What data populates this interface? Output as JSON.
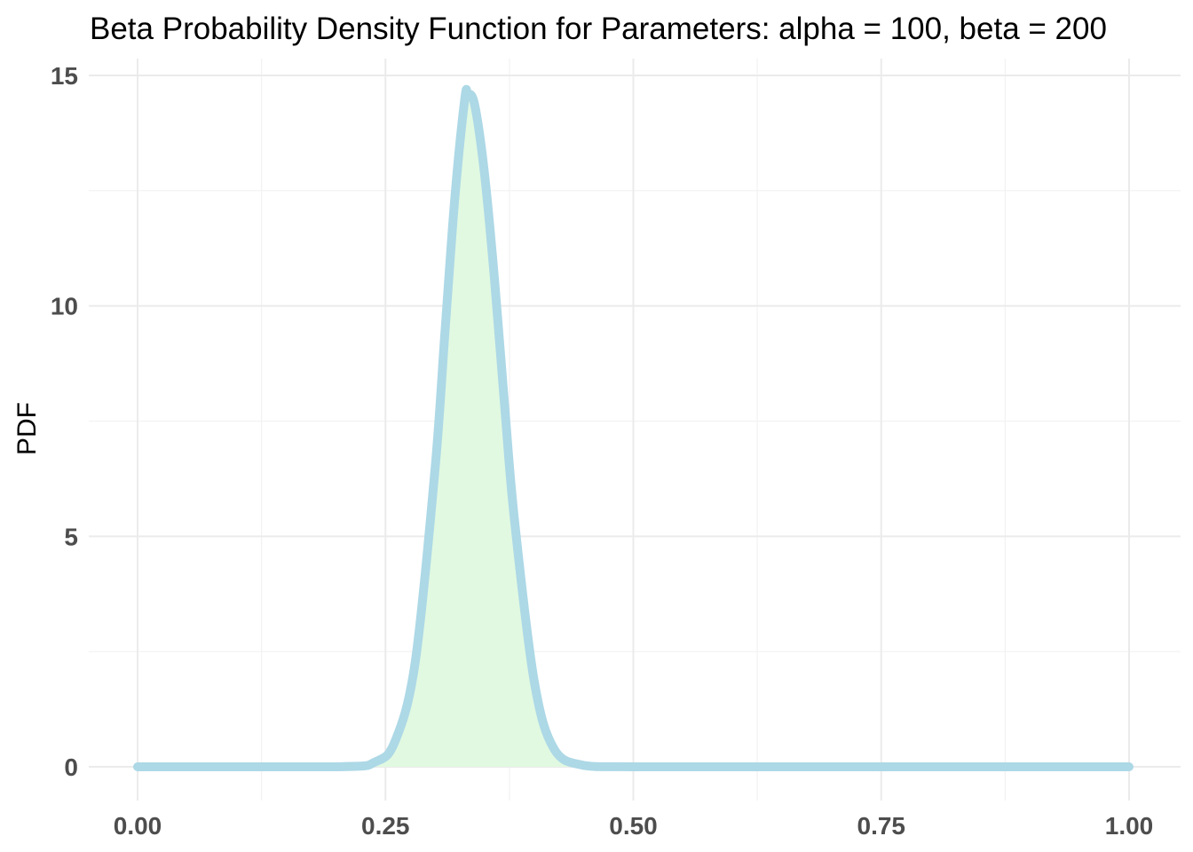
{
  "chart_data": {
    "type": "area",
    "title": "Beta Probability Density Function for Parameters: alpha = 100, beta = 200",
    "xlabel": "",
    "ylabel": "PDF",
    "distribution": {
      "family": "beta",
      "alpha": 100,
      "beta": 200
    },
    "xlim": [
      0,
      1
    ],
    "ylim": [
      0,
      15
    ],
    "x_ticks": [
      0.0,
      0.25,
      0.5,
      0.75,
      1.0
    ],
    "x_tick_labels": [
      "0.00",
      "0.25",
      "0.50",
      "0.75",
      "1.00"
    ],
    "y_ticks": [
      0,
      5,
      10,
      15
    ],
    "y_tick_labels": [
      "0",
      "5",
      "10",
      "15"
    ],
    "x": [
      0.0,
      0.2,
      0.24,
      0.26,
      0.28,
      0.3,
      0.31,
      0.32,
      0.33,
      0.333,
      0.34,
      0.35,
      0.36,
      0.37,
      0.38,
      0.4,
      0.42,
      0.45,
      0.5,
      0.75,
      1.0
    ],
    "y": [
      0.0,
      0.0,
      0.11,
      0.57,
      2.27,
      6.46,
      9.43,
      12.35,
      14.49,
      14.6,
      14.36,
      12.85,
      10.57,
      7.89,
      5.38,
      1.86,
      0.39,
      0.03,
      0.0,
      0.0,
      0.0
    ],
    "grid": true,
    "line_color": "#add8e6",
    "fill_color": "#e1f9e1",
    "background": "#ffffff"
  }
}
